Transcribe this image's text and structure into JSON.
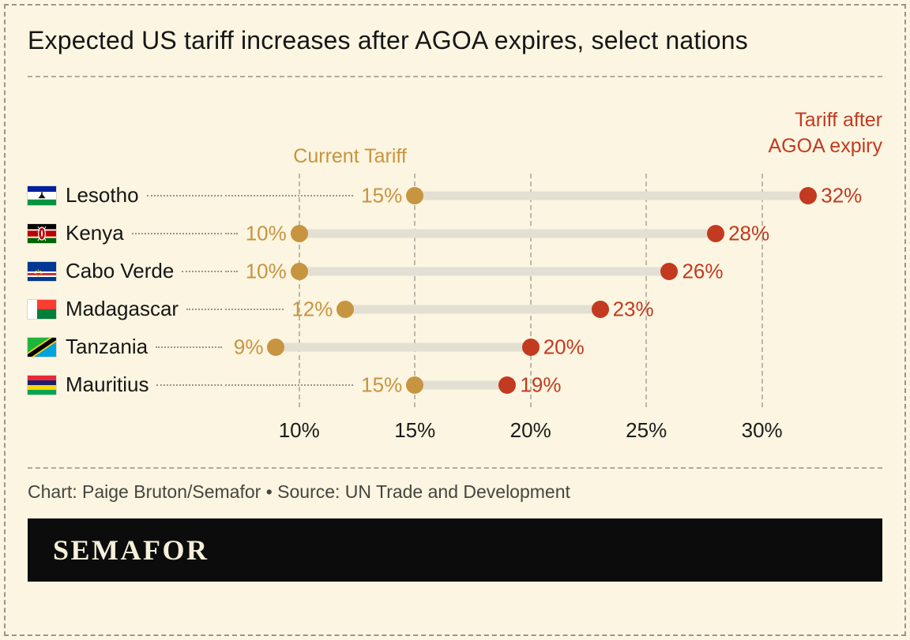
{
  "title": "Expected US tariff increases after AGOA expires, select nations",
  "legend": {
    "current": "Current Tariff",
    "after": "Tariff after AGOA expiry"
  },
  "chart_data": {
    "type": "dumbbell",
    "title": "Expected US tariff increases after AGOA expires, select nations",
    "categories": [
      "Lesotho",
      "Kenya",
      "Cabo Verde",
      "Madagascar",
      "Tanzania",
      "Mauritius"
    ],
    "series": [
      {
        "name": "Current Tariff",
        "values": [
          15,
          10,
          10,
          12,
          9,
          15
        ],
        "color": "#c79440"
      },
      {
        "name": "Tariff after AGOA expiry",
        "values": [
          32,
          28,
          26,
          23,
          20,
          19
        ],
        "color": "#c23a20"
      }
    ],
    "x_ticks": [
      10,
      15,
      20,
      25,
      30
    ],
    "x_tick_labels": [
      "10%",
      "15%",
      "20%",
      "25%",
      "30%"
    ],
    "xlim": [
      6.8,
      35.2
    ],
    "value_suffix": "%",
    "grid": "vertical-dashed",
    "legend_position": "top",
    "connector_color": "#e3dfd2"
  },
  "footer": {
    "credit": "Chart: Paige Bruton/Semafor • Source: UN Trade and Development"
  },
  "logo": {
    "wordmark": "SEMAFOR"
  },
  "colors": {
    "background": "#fbf5e1",
    "current_tariff": "#c79440",
    "after_tariff": "#c23a20",
    "logo_bar": "#0c0c0c"
  }
}
